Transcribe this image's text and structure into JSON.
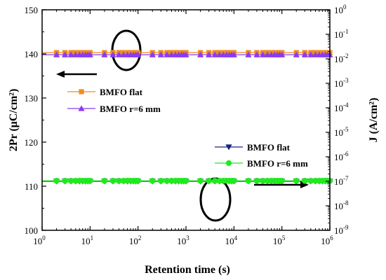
{
  "chart_data": {
    "type": "line",
    "title": "",
    "xlabel": "Retention time (s)",
    "ylabel_left": "2Pr (μC/cm²)",
    "ylabel_right": "J (A/cm²)",
    "x_scale": "log",
    "xlim": [
      1,
      1000000
    ],
    "ylim_left": [
      100,
      150
    ],
    "ylim_right": [
      1e-09,
      1
    ],
    "y_right_scale": "log",
    "grid": false,
    "legend_placement": "inside",
    "x_tick_exponents": [
      0,
      1,
      2,
      3,
      4,
      5,
      6
    ],
    "left_ticks": [
      "100",
      "110",
      "120",
      "130",
      "140",
      "150"
    ],
    "right_tick_exponents": [
      "0",
      "-1",
      "-2",
      "-3",
      "-4",
      "-5",
      "-6",
      "-7",
      "-8",
      "-9"
    ],
    "series": [
      {
        "name": "BMFO flat",
        "axis": "left",
        "color": "#f28b1e",
        "marker": "square",
        "value": 140.3
      },
      {
        "name": "BMFO r=6 mm",
        "axis": "left",
        "color": "#8a3cf0",
        "marker": "triangle-up",
        "value": 139.8
      },
      {
        "name": "BMFO flat",
        "axis": "right",
        "color": "#1a237e",
        "marker": "triangle-down",
        "value": 1e-07
      },
      {
        "name": "BMFO r=6 mm",
        "axis": "right",
        "color": "#22e822",
        "marker": "circle",
        "value": 1.05e-07
      }
    ]
  }
}
